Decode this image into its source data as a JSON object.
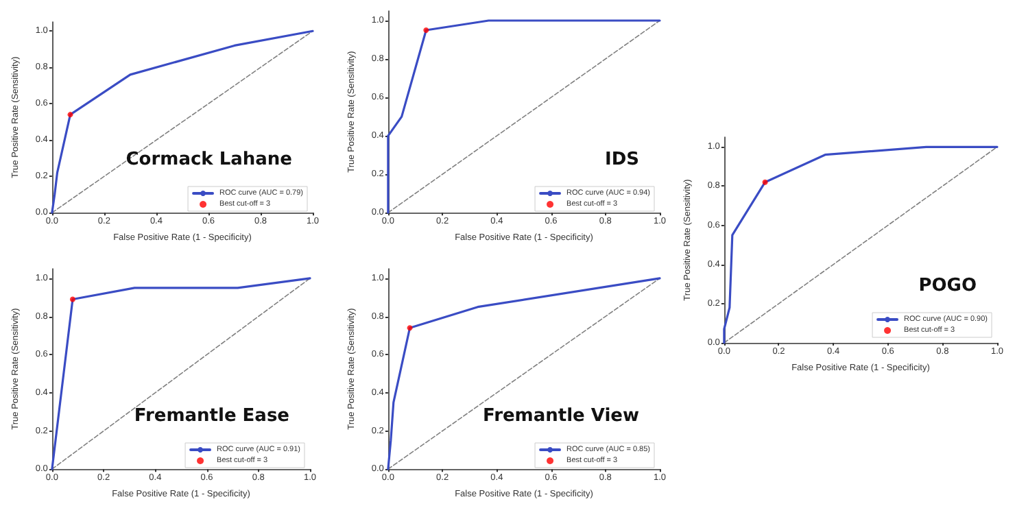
{
  "chart_data": [
    {
      "type": "line",
      "title": "Cormack Lahane",
      "xlabel": "False Positive Rate (1 - Specificity)",
      "ylabel": "True Positive Rate (Sensitivity)",
      "xlim": [
        0,
        1
      ],
      "ylim": [
        0,
        1.05
      ],
      "xticks": [
        {
          "value": 0,
          "label": "0.0"
        },
        {
          "value": 0.2,
          "label": "0.2"
        },
        {
          "value": 0.4,
          "label": "0.4"
        },
        {
          "value": 0.6,
          "label": "0.6"
        },
        {
          "value": 0.8,
          "label": "0.8"
        },
        {
          "value": 1,
          "label": "1.0"
        }
      ],
      "yticks": [
        {
          "value": 0,
          "label": "0.0"
        },
        {
          "value": 0.2,
          "label": "0.2"
        },
        {
          "value": 0.4,
          "label": "0.4"
        },
        {
          "value": 0.6,
          "label": "0.6"
        },
        {
          "value": 0.8,
          "label": "0.8"
        },
        {
          "value": 1,
          "label": "1.0"
        }
      ],
      "grid": false,
      "legend": "bottom right",
      "series": [
        {
          "type": "line",
          "name": "ROC curve (AUC = 0.79)",
          "color": "#3a4cc4",
          "marker": "none",
          "line_style": "solid",
          "x": [
            0,
            0.01,
            0.02,
            0.07,
            0.3,
            0.7,
            1
          ],
          "values": [
            0,
            0.1,
            0.22,
            0.54,
            0.76,
            0.92,
            1
          ]
        },
        {
          "type": "line",
          "color": "#808080",
          "marker": "none",
          "line_style": "dashed",
          "x": [
            0,
            1
          ],
          "values": [
            0,
            1
          ]
        },
        {
          "type": "scatter",
          "name": "Best cut-off = 3",
          "color": "#ff0000",
          "marker": "circle",
          "x": [
            0.07
          ],
          "values": [
            0.54
          ]
        }
      ]
    },
    {
      "type": "line",
      "title": "IDS",
      "xlabel": "False Positive Rate (1 - Specificity)",
      "ylabel": "True Positive Rate (Sensitivity)",
      "xlim": [
        0,
        1
      ],
      "ylim": [
        0,
        1.05
      ],
      "xticks": [
        {
          "value": 0,
          "label": "0.0"
        },
        {
          "value": 0.2,
          "label": "0.2"
        },
        {
          "value": 0.4,
          "label": "0.4"
        },
        {
          "value": 0.6,
          "label": "0.6"
        },
        {
          "value": 0.8,
          "label": "0.8"
        },
        {
          "value": 1,
          "label": "1.0"
        }
      ],
      "yticks": [
        {
          "value": 0,
          "label": "0.0"
        },
        {
          "value": 0.2,
          "label": "0.2"
        },
        {
          "value": 0.4,
          "label": "0.4"
        },
        {
          "value": 0.6,
          "label": "0.6"
        },
        {
          "value": 0.8,
          "label": "0.8"
        },
        {
          "value": 1,
          "label": "1.0"
        }
      ],
      "grid": false,
      "legend": "bottom right",
      "series": [
        {
          "type": "line",
          "name": "ROC curve (AUC = 0.94)",
          "color": "#3a4cc4",
          "marker": "none",
          "line_style": "solid",
          "x": [
            0,
            0,
            0.05,
            0.14,
            0.37,
            1
          ],
          "values": [
            0,
            0.4,
            0.5,
            0.95,
            1,
            1
          ]
        },
        {
          "type": "line",
          "color": "#808080",
          "marker": "none",
          "line_style": "dashed",
          "x": [
            0,
            1
          ],
          "values": [
            0,
            1
          ]
        },
        {
          "type": "scatter",
          "name": "Best cut-off = 3",
          "color": "#ff0000",
          "marker": "circle",
          "x": [
            0.14
          ],
          "values": [
            0.95
          ]
        }
      ]
    },
    {
      "type": "line",
      "title": "POGO",
      "xlabel": "False Positive Rate (1 - Specificity)",
      "ylabel": "True Positive Rate (Sensitivity)",
      "xlim": [
        0,
        1
      ],
      "ylim": [
        0,
        1.05
      ],
      "xticks": [
        {
          "value": 0,
          "label": "0.0"
        },
        {
          "value": 0.2,
          "label": "0.2"
        },
        {
          "value": 0.4,
          "label": "0.4"
        },
        {
          "value": 0.6,
          "label": "0.6"
        },
        {
          "value": 0.8,
          "label": "0.8"
        },
        {
          "value": 1,
          "label": "1.0"
        }
      ],
      "yticks": [
        {
          "value": 0,
          "label": "0.0"
        },
        {
          "value": 0.2,
          "label": "0.2"
        },
        {
          "value": 0.4,
          "label": "0.4"
        },
        {
          "value": 0.6,
          "label": "0.6"
        },
        {
          "value": 0.8,
          "label": "0.8"
        },
        {
          "value": 1,
          "label": "1.0"
        }
      ],
      "grid": false,
      "legend": "bottom right",
      "series": [
        {
          "type": "line",
          "name": "ROC curve (AUC = 0.90)",
          "color": "#3a4cc4",
          "marker": "none",
          "line_style": "solid",
          "x": [
            0,
            0,
            0.02,
            0.03,
            0.15,
            0.37,
            0.74,
            1
          ],
          "values": [
            0,
            0.07,
            0.18,
            0.55,
            0.82,
            0.96,
            1,
            1
          ]
        },
        {
          "type": "line",
          "color": "#808080",
          "marker": "none",
          "line_style": "dashed",
          "x": [
            0,
            1
          ],
          "values": [
            0,
            1
          ]
        },
        {
          "type": "scatter",
          "name": "Best cut-off = 3",
          "color": "#ff0000",
          "marker": "circle",
          "x": [
            0.15
          ],
          "values": [
            0.82
          ]
        }
      ]
    },
    {
      "type": "line",
      "title": "Fremantle Ease",
      "xlabel": "False Positive Rate (1 - Specificity)",
      "ylabel": "True Positive Rate (Sensitivity)",
      "xlim": [
        0,
        1
      ],
      "ylim": [
        0,
        1.05
      ],
      "xticks": [
        {
          "value": 0,
          "label": "0.0"
        },
        {
          "value": 0.2,
          "label": "0.2"
        },
        {
          "value": 0.4,
          "label": "0.4"
        },
        {
          "value": 0.6,
          "label": "0.6"
        },
        {
          "value": 0.8,
          "label": "0.8"
        },
        {
          "value": 1,
          "label": "1.0"
        }
      ],
      "yticks": [
        {
          "value": 0,
          "label": "0.0"
        },
        {
          "value": 0.2,
          "label": "0.2"
        },
        {
          "value": 0.4,
          "label": "0.4"
        },
        {
          "value": 0.6,
          "label": "0.6"
        },
        {
          "value": 0.8,
          "label": "0.8"
        },
        {
          "value": 1,
          "label": "1.0"
        }
      ],
      "grid": false,
      "legend": "bottom right",
      "series": [
        {
          "type": "line",
          "name": "ROC curve (AUC = 0.91)",
          "color": "#3a4cc4",
          "marker": "none",
          "line_style": "solid",
          "x": [
            0,
            0.08,
            0.32,
            0.72,
            1
          ],
          "values": [
            0,
            0.89,
            0.95,
            0.95,
            1
          ]
        },
        {
          "type": "line",
          "color": "#808080",
          "marker": "none",
          "line_style": "dashed",
          "x": [
            0,
            1
          ],
          "values": [
            0,
            1
          ]
        },
        {
          "type": "scatter",
          "name": "Best cut-off = 3",
          "color": "#ff0000",
          "marker": "circle",
          "x": [
            0.08
          ],
          "values": [
            0.89
          ]
        }
      ]
    },
    {
      "type": "line",
      "title": "Fremantle View",
      "xlabel": "False Positive Rate (1 - Specificity)",
      "ylabel": "True Positive Rate (Sensitivity)",
      "xlim": [
        0,
        1
      ],
      "ylim": [
        0,
        1.05
      ],
      "xticks": [
        {
          "value": 0,
          "label": "0.0"
        },
        {
          "value": 0.2,
          "label": "0.2"
        },
        {
          "value": 0.4,
          "label": "0.4"
        },
        {
          "value": 0.6,
          "label": "0.6"
        },
        {
          "value": 0.8,
          "label": "0.8"
        },
        {
          "value": 1,
          "label": "1.0"
        }
      ],
      "yticks": [
        {
          "value": 0,
          "label": "0.0"
        },
        {
          "value": 0.2,
          "label": "0.2"
        },
        {
          "value": 0.4,
          "label": "0.4"
        },
        {
          "value": 0.6,
          "label": "0.6"
        },
        {
          "value": 0.8,
          "label": "0.8"
        },
        {
          "value": 1,
          "label": "1.0"
        }
      ],
      "grid": false,
      "legend": "bottom right",
      "series": [
        {
          "type": "line",
          "name": "ROC curve (AUC = 0.85)",
          "color": "#3a4cc4",
          "marker": "none",
          "line_style": "solid",
          "x": [
            0,
            0.01,
            0.02,
            0.08,
            0.33,
            1
          ],
          "values": [
            0,
            0.15,
            0.35,
            0.74,
            0.85,
            1
          ]
        },
        {
          "type": "line",
          "color": "#808080",
          "marker": "none",
          "line_style": "dashed",
          "x": [
            0,
            1
          ],
          "values": [
            0,
            1
          ]
        },
        {
          "type": "scatter",
          "name": "Best cut-off = 3",
          "color": "#ff0000",
          "marker": "circle",
          "x": [
            0.08
          ],
          "values": [
            0.74
          ]
        }
      ]
    }
  ]
}
